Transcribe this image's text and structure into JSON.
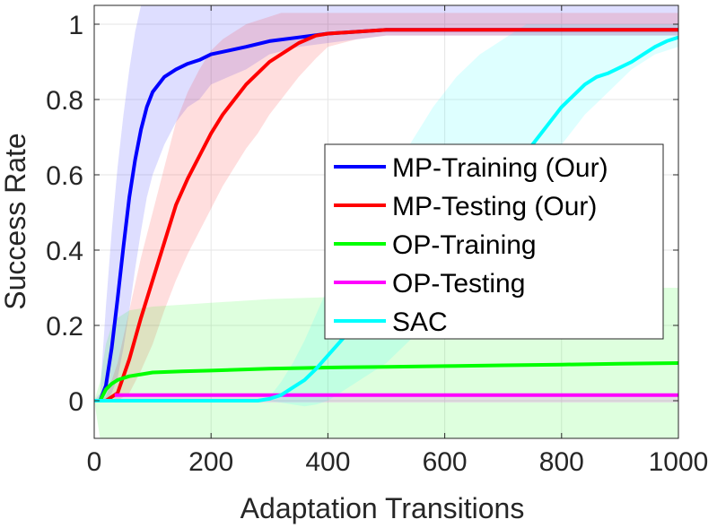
{
  "chart_data": {
    "type": "line",
    "title": "",
    "xlabel": "Adaptation Transitions",
    "ylabel": "Success Rate",
    "xlim": [
      0,
      1000
    ],
    "ylim": [
      -0.1,
      1.05
    ],
    "xticks": [
      0,
      200,
      400,
      600,
      800,
      1000
    ],
    "yticks": [
      0,
      0.2,
      0.4,
      0.6,
      0.8,
      1
    ],
    "xtick_labels": [
      "0",
      "200",
      "400",
      "600",
      "800",
      "1000"
    ],
    "ytick_labels": [
      "0",
      "0.2",
      "0.4",
      "0.6",
      "0.8",
      "1"
    ],
    "grid": true,
    "legend_position": "center-right",
    "series": [
      {
        "name": "MP-Training (Our)",
        "color": "#0000ff",
        "x": [
          0,
          10,
          20,
          30,
          40,
          50,
          60,
          70,
          80,
          90,
          100,
          120,
          140,
          160,
          180,
          200,
          230,
          260,
          300,
          350,
          400,
          500,
          600,
          700,
          800,
          900,
          1000
        ],
        "y": [
          0,
          0.0,
          0.04,
          0.14,
          0.27,
          0.41,
          0.54,
          0.64,
          0.72,
          0.78,
          0.82,
          0.86,
          0.88,
          0.895,
          0.905,
          0.92,
          0.93,
          0.94,
          0.955,
          0.965,
          0.975,
          0.985,
          0.985,
          0.985,
          0.985,
          0.985,
          0.985
        ],
        "band_upper": [
          0,
          0.02,
          0.25,
          0.45,
          0.62,
          0.76,
          0.88,
          0.98,
          1.05,
          1.05,
          1.05,
          1.05,
          1.05,
          1.05,
          1.05,
          1.05,
          1.05,
          1.05,
          1.05,
          1.05,
          1.05,
          1.05,
          1.05,
          1.05,
          1.05,
          1.05,
          1.05
        ],
        "band_lower": [
          0,
          0,
          0,
          0.02,
          0.06,
          0.14,
          0.24,
          0.35,
          0.45,
          0.54,
          0.6,
          0.68,
          0.74,
          0.78,
          0.8,
          0.84,
          0.86,
          0.88,
          0.92,
          0.94,
          0.95,
          0.97,
          0.97,
          0.97,
          0.97,
          0.97,
          0.97
        ]
      },
      {
        "name": "MP-Testing (Our)",
        "color": "#ff0000",
        "x": [
          0,
          20,
          40,
          60,
          80,
          100,
          120,
          140,
          160,
          180,
          200,
          220,
          240,
          260,
          280,
          300,
          320,
          350,
          380,
          400,
          450,
          500,
          600,
          700,
          800,
          900,
          1000
        ],
        "y": [
          0,
          0.0,
          0.02,
          0.11,
          0.22,
          0.32,
          0.42,
          0.52,
          0.59,
          0.65,
          0.71,
          0.76,
          0.8,
          0.84,
          0.87,
          0.9,
          0.92,
          0.95,
          0.97,
          0.975,
          0.98,
          0.985,
          0.985,
          0.985,
          0.985,
          0.985,
          0.985
        ],
        "band_upper": [
          0,
          0.01,
          0.1,
          0.24,
          0.38,
          0.5,
          0.62,
          0.74,
          0.82,
          0.88,
          0.93,
          0.96,
          0.98,
          1.0,
          1.01,
          1.02,
          1.03,
          1.03,
          1.03,
          1.03,
          1.03,
          1.03,
          1.03,
          1.03,
          1.03,
          1.03,
          1.03
        ],
        "band_lower": [
          0,
          0,
          0,
          0.02,
          0.08,
          0.15,
          0.24,
          0.32,
          0.39,
          0.45,
          0.51,
          0.57,
          0.62,
          0.67,
          0.71,
          0.76,
          0.8,
          0.86,
          0.91,
          0.94,
          0.96,
          0.97,
          0.97,
          0.97,
          0.97,
          0.97,
          0.97
        ]
      },
      {
        "name": "OP-Training",
        "color": "#00ff00",
        "x": [
          0,
          10,
          20,
          30,
          40,
          60,
          80,
          100,
          150,
          200,
          300,
          400,
          500,
          600,
          700,
          800,
          900,
          1000
        ],
        "y": [
          0,
          0.0,
          0.03,
          0.045,
          0.055,
          0.065,
          0.07,
          0.075,
          0.078,
          0.08,
          0.085,
          0.088,
          0.09,
          0.092,
          0.094,
          0.096,
          0.098,
          0.1
        ],
        "band_upper": [
          0,
          0.05,
          0.15,
          0.2,
          0.22,
          0.24,
          0.245,
          0.25,
          0.255,
          0.26,
          0.27,
          0.275,
          0.28,
          0.285,
          0.29,
          0.295,
          0.3,
          0.3
        ],
        "band_lower": [
          0,
          -0.1,
          -0.1,
          -0.1,
          -0.1,
          -0.1,
          -0.1,
          -0.1,
          -0.1,
          -0.1,
          -0.1,
          -0.1,
          -0.1,
          -0.1,
          -0.1,
          -0.1,
          -0.1,
          -0.1
        ]
      },
      {
        "name": "OP-Testing",
        "color": "#ff00ff",
        "x": [
          35,
          1000
        ],
        "y": [
          0.015,
          0.015
        ],
        "band_upper": [
          0.02,
          0.02
        ],
        "band_lower": [
          -0.005,
          -0.005
        ]
      },
      {
        "name": "SAC",
        "color": "#00ffff",
        "x": [
          0,
          280,
          300,
          320,
          340,
          360,
          380,
          400,
          420,
          440,
          460,
          480,
          500,
          520,
          540,
          560,
          580,
          600,
          620,
          640,
          660,
          680,
          700,
          720,
          740,
          760,
          780,
          800,
          820,
          840,
          860,
          880,
          900,
          920,
          940,
          960,
          980,
          1000
        ],
        "y": [
          0,
          0,
          0.005,
          0.015,
          0.035,
          0.055,
          0.085,
          0.12,
          0.155,
          0.19,
          0.225,
          0.255,
          0.29,
          0.32,
          0.345,
          0.37,
          0.4,
          0.43,
          0.46,
          0.49,
          0.52,
          0.55,
          0.59,
          0.62,
          0.66,
          0.7,
          0.74,
          0.78,
          0.81,
          0.84,
          0.86,
          0.87,
          0.885,
          0.9,
          0.92,
          0.94,
          0.955,
          0.965
        ],
        "band_upper": [
          0,
          0,
          0.01,
          0.05,
          0.1,
          0.16,
          0.23,
          0.3,
          0.36,
          0.42,
          0.48,
          0.53,
          0.58,
          0.63,
          0.68,
          0.73,
          0.78,
          0.82,
          0.86,
          0.89,
          0.92,
          0.94,
          0.96,
          0.98,
          1.0,
          1.0,
          1.0,
          1.0,
          1.0,
          1.0,
          1.0,
          1.0,
          1.0,
          1.0,
          1.0,
          1.0,
          1.0,
          1.0
        ],
        "band_lower": [
          0,
          0,
          0,
          -0.005,
          -0.01,
          -0.015,
          -0.01,
          0.0,
          0.02,
          0.04,
          0.06,
          0.08,
          0.1,
          0.13,
          0.16,
          0.19,
          0.22,
          0.26,
          0.3,
          0.34,
          0.38,
          0.42,
          0.46,
          0.5,
          0.55,
          0.6,
          0.64,
          0.68,
          0.72,
          0.76,
          0.79,
          0.82,
          0.85,
          0.88,
          0.9,
          0.92,
          0.93,
          0.94
        ]
      }
    ]
  }
}
